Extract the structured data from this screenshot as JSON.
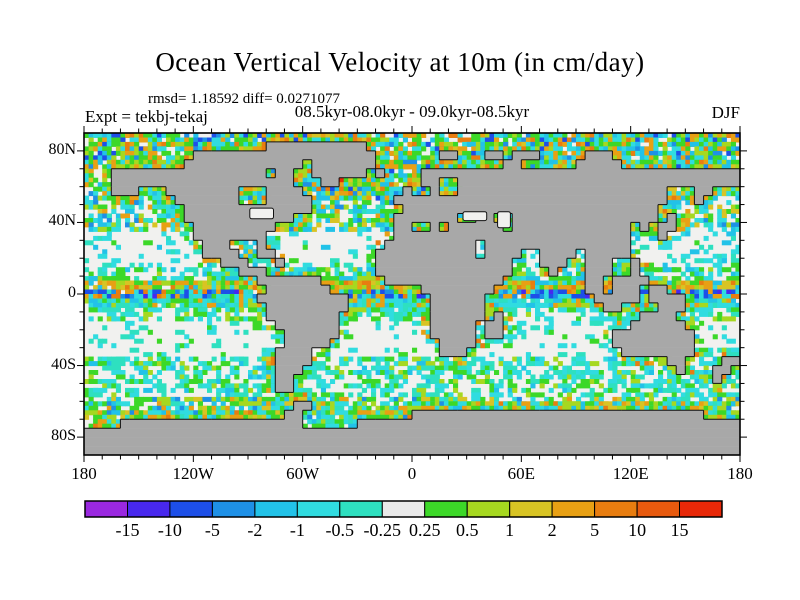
{
  "header": {
    "title": "Ocean Vertical Velocity at 10m (in cm/day)",
    "stats": "rmsd= 1.18592 diff= 0.0271077",
    "period": "08.5kyr-08.0kyr - 09.0kyr-08.5kyr",
    "experiment": "Expt = tekbj-tekaj",
    "season": "DJF"
  },
  "chart_data": {
    "type": "heatmap",
    "title": "Ocean Vertical Velocity at 10m (in cm/day)",
    "subtitle": "08.5kyr-08.0kyr - 09.0kyr-08.5kyr",
    "rmsd": 1.18592,
    "diff": 0.0271077,
    "units": "cm/day",
    "depth": "10m",
    "season": "DJF",
    "experiment": "tekbj-tekaj",
    "projection": "equirectangular",
    "lon_range": [
      -180,
      180
    ],
    "lat_range": [
      -90,
      90
    ],
    "x_tick_labels": [
      "180",
      "120W",
      "60W",
      "0",
      "60E",
      "120E",
      "180"
    ],
    "x_tick_lons": [
      -180,
      -120,
      -60,
      0,
      60,
      120,
      180
    ],
    "y_tick_labels": [
      "80N",
      "40N",
      "0",
      "40S",
      "80S"
    ],
    "y_tick_lats": [
      80,
      40,
      0,
      -40,
      -80
    ],
    "minor_tick_deg": 10,
    "colorbar_levels": [
      -15,
      -10,
      -5,
      -2,
      -1,
      -0.5,
      -0.25,
      0.25,
      0.5,
      1,
      2,
      5,
      10,
      15
    ],
    "palette": [
      "#9a28e0",
      "#4828ee",
      "#1d4fe8",
      "#1e90e6",
      "#22c2e8",
      "#30dce0",
      "#2ee0c0",
      "#e9e9e9",
      "#3cd828",
      "#a6d820",
      "#d8c424",
      "#e8a014",
      "#e87d10",
      "#e85a0e",
      "#e82808"
    ],
    "land_color": "#a8a8a8",
    "ocean_color": "#f1f1ef",
    "coast_color": "#111111"
  },
  "map": {
    "land_rows": [
      [],
      [
        [
          20,
          30
        ]
      ],
      [
        [
          12,
          31
        ],
        [
          39,
          40
        ],
        [
          44,
          45
        ],
        [
          47,
          49
        ],
        [
          55,
          57
        ]
      ],
      [
        [
          11,
          23
        ],
        [
          25,
          31
        ],
        [
          46,
          47
        ],
        [
          54,
          58
        ]
      ],
      [
        [
          3,
          19
        ],
        [
          21,
          22
        ],
        [
          25,
          30
        ],
        [
          32,
          32
        ],
        [
          37,
          71
        ]
      ],
      [
        [
          3,
          22
        ],
        [
          26,
          27
        ],
        [
          37,
          38
        ],
        [
          41,
          71
        ]
      ],
      [
        [
          3,
          5
        ],
        [
          9,
          16
        ],
        [
          20,
          23
        ],
        [
          35,
          35
        ],
        [
          38,
          38
        ],
        [
          41,
          63
        ],
        [
          67,
          68
        ]
      ],
      [
        [
          10,
          16
        ],
        [
          20,
          24
        ],
        [
          34,
          63
        ],
        [
          67,
          67
        ]
      ],
      [
        [
          11,
          24
        ],
        [
          35,
          62
        ]
      ],
      [
        [
          11,
          22
        ],
        [
          34,
          40
        ],
        [
          43,
          44
        ],
        [
          47,
          62
        ],
        [
          64,
          64
        ]
      ],
      [
        [
          12,
          20
        ],
        [
          34,
          35
        ],
        [
          38,
          38
        ],
        [
          40,
          45
        ],
        [
          47,
          59
        ],
        [
          61,
          61
        ],
        [
          63,
          64
        ]
      ],
      [
        [
          12,
          19
        ],
        [
          34,
          59
        ],
        [
          63,
          63
        ]
      ],
      [
        [
          13,
          15
        ],
        [
          19,
          19
        ],
        [
          33,
          42
        ],
        [
          44,
          59
        ]
      ],
      [
        [
          13,
          16
        ],
        [
          19,
          20
        ],
        [
          32,
          42
        ],
        [
          44,
          47
        ],
        [
          50,
          53
        ],
        [
          55,
          59
        ]
      ],
      [
        [
          15,
          17
        ],
        [
          21,
          21
        ],
        [
          32,
          46
        ],
        [
          50,
          52
        ],
        [
          55,
          57
        ],
        [
          60,
          60
        ]
      ],
      [
        [
          17,
          19
        ],
        [
          32,
          46
        ],
        [
          51,
          51
        ],
        [
          55,
          57
        ],
        [
          60,
          60
        ]
      ],
      [
        [
          19,
          25
        ],
        [
          33,
          45
        ],
        [
          55,
          56
        ],
        [
          58,
          61
        ]
      ],
      [
        [
          20,
          26
        ],
        [
          37,
          44
        ],
        [
          55,
          56
        ],
        [
          58,
          60
        ],
        [
          62,
          63
        ]
      ],
      [
        [
          19,
          28
        ],
        [
          38,
          43
        ],
        [
          56,
          60
        ],
        [
          62,
          65
        ]
      ],
      [
        [
          20,
          28
        ],
        [
          38,
          43
        ],
        [
          57,
          58
        ],
        [
          63,
          65
        ]
      ],
      [
        [
          20,
          27
        ],
        [
          38,
          43
        ],
        [
          45,
          45
        ],
        [
          61,
          64
        ]
      ],
      [
        [
          21,
          27
        ],
        [
          38,
          42
        ],
        [
          44,
          45
        ],
        [
          60,
          65
        ]
      ],
      [
        [
          22,
          27
        ],
        [
          38,
          42
        ],
        [
          44,
          45
        ],
        [
          58,
          66
        ]
      ],
      [
        [
          22,
          26
        ],
        [
          39,
          42
        ],
        [
          58,
          66
        ]
      ],
      [
        [
          21,
          24
        ],
        [
          39,
          41
        ],
        [
          59,
          66
        ]
      ],
      [
        [
          21,
          24
        ],
        [
          64,
          65
        ],
        [
          70,
          71
        ]
      ],
      [
        [
          21,
          23
        ],
        [
          65,
          65
        ],
        [
          69,
          70
        ]
      ],
      [
        [
          21,
          22
        ],
        [
          69,
          69
        ]
      ],
      [
        [
          21,
          22
        ]
      ],
      [],
      [
        [
          23,
          24
        ]
      ],
      [
        [
          22,
          23
        ],
        [
          36,
          67
        ]
      ],
      [
        [
          4,
          23
        ],
        [
          30,
          71
        ]
      ],
      [
        [
          0,
          71
        ]
      ],
      [
        [
          0,
          71
        ]
      ],
      [
        [
          0,
          71
        ]
      ]
    ],
    "lakes": [
      {
        "name": "great-lakes",
        "lon": [
          -89,
          -76
        ],
        "lat": [
          42,
          48
        ]
      },
      {
        "name": "black-sea",
        "lon": [
          28,
          41
        ],
        "lat": [
          41,
          46
        ]
      },
      {
        "name": "caspian-sea",
        "lon": [
          47,
          54
        ],
        "lat": [
          37,
          46
        ]
      }
    ],
    "pattern_bands": [
      {
        "name": "greenland-convection",
        "lat": [
          60,
          67
        ],
        "lon": [
          -39,
          -29
        ],
        "density": 1.0,
        "colors": [
          [
            14,
            3
          ],
          [
            1,
            2
          ],
          [
            0,
            1
          ],
          [
            2,
            2
          ],
          [
            12,
            1
          ],
          [
            3,
            1
          ]
        ]
      },
      {
        "name": "subpolar-north-atlantic",
        "lat": [
          52,
          72
        ],
        "lon": [
          -62,
          12
        ],
        "density": 0.88,
        "colors": [
          [
            4,
            3
          ],
          [
            3,
            2
          ],
          [
            11,
            2
          ],
          [
            8,
            2
          ],
          [
            5,
            2
          ],
          [
            12,
            1
          ],
          [
            2,
            1
          ],
          [
            9,
            1
          ],
          [
            10,
            1
          ]
        ]
      },
      {
        "name": "arctic",
        "lat": [
          70,
          90
        ],
        "density": 0.82,
        "colors": [
          [
            8,
            3
          ],
          [
            5,
            3
          ],
          [
            4,
            2
          ],
          [
            11,
            2
          ],
          [
            9,
            2
          ],
          [
            3,
            1
          ],
          [
            12,
            1
          ],
          [
            2,
            1
          ]
        ]
      },
      {
        "name": "north-midlat",
        "lat": [
          35,
          70
        ],
        "density": 0.55,
        "colors": [
          [
            5,
            3
          ],
          [
            8,
            3
          ],
          [
            4,
            2
          ],
          [
            9,
            2
          ],
          [
            10,
            1
          ],
          [
            11,
            1
          ],
          [
            3,
            1
          ],
          [
            6,
            1
          ]
        ]
      },
      {
        "name": "north-gyre",
        "lat": [
          15,
          35
        ],
        "density": 0.16,
        "colors": [
          [
            5,
            3
          ],
          [
            6,
            2
          ],
          [
            8,
            1
          ],
          [
            4,
            1
          ]
        ]
      },
      {
        "name": "north-tropics",
        "lat": [
          7,
          15
        ],
        "density": 0.42,
        "colors": [
          [
            5,
            3
          ],
          [
            6,
            2
          ],
          [
            8,
            2
          ],
          [
            9,
            1
          ],
          [
            4,
            1
          ]
        ]
      },
      {
        "name": "north-equatorial-band",
        "lat": [
          2,
          7
        ],
        "density": 0.88,
        "colors": [
          [
            11,
            3
          ],
          [
            10,
            2
          ],
          [
            12,
            2
          ],
          [
            8,
            2
          ],
          [
            9,
            2
          ],
          [
            4,
            1
          ],
          [
            5,
            1
          ]
        ]
      },
      {
        "name": "equator-band",
        "lat": [
          -2,
          2
        ],
        "density": 0.92,
        "colors": [
          [
            2,
            3
          ],
          [
            3,
            2
          ],
          [
            11,
            2
          ],
          [
            5,
            2
          ],
          [
            12,
            1
          ],
          [
            6,
            1
          ],
          [
            8,
            1
          ],
          [
            1,
            1
          ]
        ]
      },
      {
        "name": "south-equatorial-band",
        "lat": [
          -7,
          -2
        ],
        "density": 0.85,
        "colors": [
          [
            5,
            3
          ],
          [
            6,
            3
          ],
          [
            4,
            2
          ],
          [
            9,
            1
          ],
          [
            8,
            1
          ],
          [
            11,
            1
          ]
        ]
      },
      {
        "name": "south-tropics",
        "lat": [
          -15,
          -7
        ],
        "density": 0.45,
        "colors": [
          [
            5,
            3
          ],
          [
            6,
            2
          ],
          [
            8,
            2
          ],
          [
            9,
            1
          ]
        ]
      },
      {
        "name": "south-gyre",
        "lat": [
          -35,
          -15
        ],
        "density": 0.15,
        "colors": [
          [
            5,
            2
          ],
          [
            6,
            2
          ],
          [
            8,
            1
          ]
        ]
      },
      {
        "name": "south-midlat",
        "lat": [
          -58,
          -35
        ],
        "density": 0.5,
        "colors": [
          [
            5,
            3
          ],
          [
            6,
            3
          ],
          [
            8,
            2
          ],
          [
            9,
            1
          ],
          [
            4,
            1
          ]
        ]
      },
      {
        "name": "antarctic-ring",
        "lat": [
          -70,
          -58
        ],
        "density": 0.7,
        "colors": [
          [
            8,
            3
          ],
          [
            9,
            2
          ],
          [
            5,
            2
          ],
          [
            10,
            1
          ],
          [
            11,
            1
          ],
          [
            4,
            1
          ],
          [
            6,
            1
          ],
          [
            3,
            1
          ]
        ]
      }
    ],
    "default_band": {
      "density": 0.15,
      "colors": [
        [
          5,
          2
        ],
        [
          6,
          1
        ],
        [
          8,
          1
        ]
      ]
    },
    "coastal_boost": {
      "density": 0.42,
      "colors": [
        [
          8,
          3
        ],
        [
          9,
          2
        ],
        [
          11,
          2
        ],
        [
          5,
          2
        ],
        [
          10,
          1
        ],
        [
          12,
          1
        ],
        [
          4,
          1
        ]
      ]
    }
  }
}
